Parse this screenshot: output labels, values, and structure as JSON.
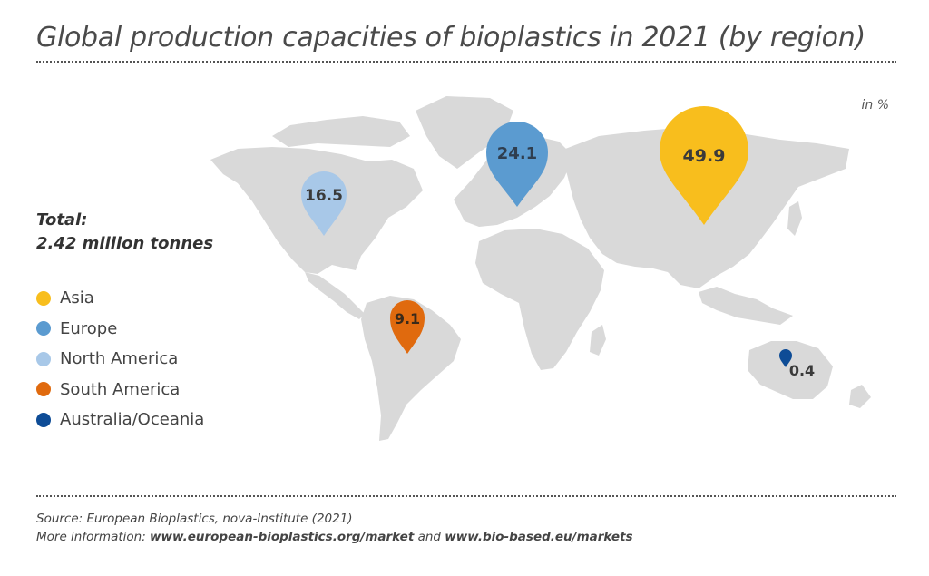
{
  "title": "Global production capacities of bioplastics in 2021 (by region)",
  "unit_note": "in %",
  "total": {
    "label": "Total:",
    "value": "2.42 million tonnes"
  },
  "colors": {
    "Asia": "#F8BE1D",
    "Europe": "#5B9BD0",
    "North America": "#A8C8E8",
    "South America": "#E06A0E",
    "Australia/Oceania": "#0E4C96",
    "land": "#D9D9D9"
  },
  "legend": [
    {
      "name": "Asia",
      "color": "#F8BE1D"
    },
    {
      "name": "Europe",
      "color": "#5B9BD0"
    },
    {
      "name": "North America",
      "color": "#A8C8E8"
    },
    {
      "name": "South America",
      "color": "#E06A0E"
    },
    {
      "name": "Australia/Oceania",
      "color": "#0E4C96"
    }
  ],
  "chart_data": {
    "type": "map",
    "series": [
      {
        "region": "Asia",
        "value": 49.9,
        "label": "49.9"
      },
      {
        "region": "Europe",
        "value": 24.1,
        "label": "24.1"
      },
      {
        "region": "North America",
        "value": 16.5,
        "label": "16.5"
      },
      {
        "region": "South America",
        "value": 9.1,
        "label": "9.1"
      },
      {
        "region": "Australia/Oceania",
        "value": 0.4,
        "label": "0.4"
      }
    ]
  },
  "source": {
    "line1": "Source: European Bioplastics, nova-Institute (2021)",
    "line2_prefix": "More information: ",
    "link1": "www.european-bioplastics.org/market",
    "connector": " and ",
    "link2": "www.bio-based.eu/markets"
  }
}
